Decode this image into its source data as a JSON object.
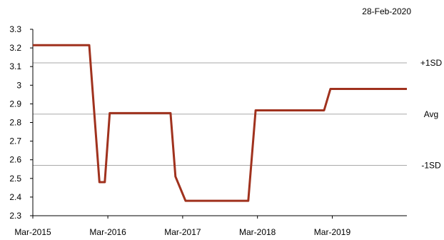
{
  "chart_data": {
    "type": "line",
    "date_label": "28-Feb-2020",
    "x_ticks": [
      "Mar-2015",
      "Mar-2016",
      "Mar-2017",
      "Mar-2018",
      "Mar-2019"
    ],
    "y_ticks": [
      "2.3",
      "2.4",
      "2.5",
      "2.6",
      "2.7",
      "2.8",
      "2.9",
      "3",
      "3.1",
      "3.2",
      "3.3"
    ],
    "ylim": [
      2.3,
      3.3
    ],
    "xlim": [
      "2015-03-01",
      "2020-02-28"
    ],
    "series": [
      {
        "color": "#A0321E",
        "points": [
          {
            "x": "2015-03-01",
            "y": 3.215
          },
          {
            "x": "2015-12-01",
            "y": 3.215
          },
          {
            "x": "2016-01-20",
            "y": 2.48
          },
          {
            "x": "2016-02-15",
            "y": 2.48
          },
          {
            "x": "2016-03-10",
            "y": 2.85
          },
          {
            "x": "2017-01-01",
            "y": 2.85
          },
          {
            "x": "2017-01-25",
            "y": 2.51
          },
          {
            "x": "2017-03-15",
            "y": 2.38
          },
          {
            "x": "2018-01-15",
            "y": 2.38
          },
          {
            "x": "2018-02-20",
            "y": 2.865
          },
          {
            "x": "2019-01-20",
            "y": 2.865
          },
          {
            "x": "2019-02-20",
            "y": 2.98
          },
          {
            "x": "2020-02-28",
            "y": 2.98
          }
        ]
      }
    ],
    "reference_lines": [
      {
        "label": "+1SD",
        "value": 3.12
      },
      {
        "label": "Avg",
        "value": 2.845
      },
      {
        "label": "-1SD",
        "value": 2.57
      }
    ],
    "grid": false,
    "ref_line_color": "#AAAAAA",
    "axis_color": "#000000"
  }
}
